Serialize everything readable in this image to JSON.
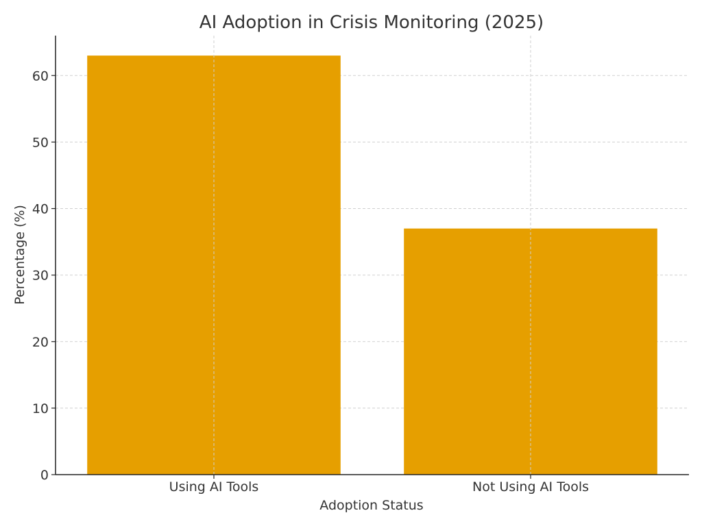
{
  "chart_data": {
    "type": "bar",
    "title": "AI Adoption in Crisis Monitoring (2025)",
    "xlabel": "Adoption Status",
    "ylabel": "Percentage (%)",
    "categories": [
      "Using AI Tools",
      "Not Using AI Tools"
    ],
    "values": [
      63,
      37
    ],
    "ylim": [
      0,
      66
    ],
    "yticks": [
      0,
      10,
      20,
      30,
      40,
      50,
      60
    ],
    "grid": true,
    "bar_color": "#E69F00"
  }
}
